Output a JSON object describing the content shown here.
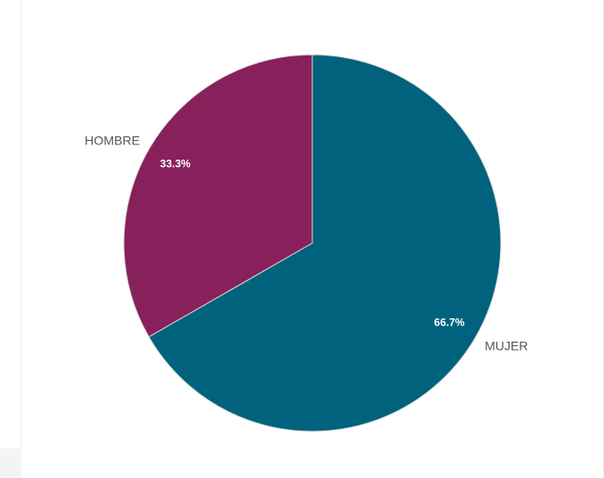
{
  "chart_data": {
    "type": "pie",
    "title": "",
    "slices": [
      {
        "label": "MUJER",
        "value": 66.7,
        "display": "66.7%",
        "color": "#00627c"
      },
      {
        "label": "HOMBRE",
        "value": 33.3,
        "display": "33.3%",
        "color": "#88205b"
      }
    ],
    "start_angle_deg": 0,
    "direction": "clockwise",
    "slice_border_color": "#d9d9d9",
    "label_color": "#555555",
    "value_label_color": "#ffffff",
    "legend": "none"
  }
}
